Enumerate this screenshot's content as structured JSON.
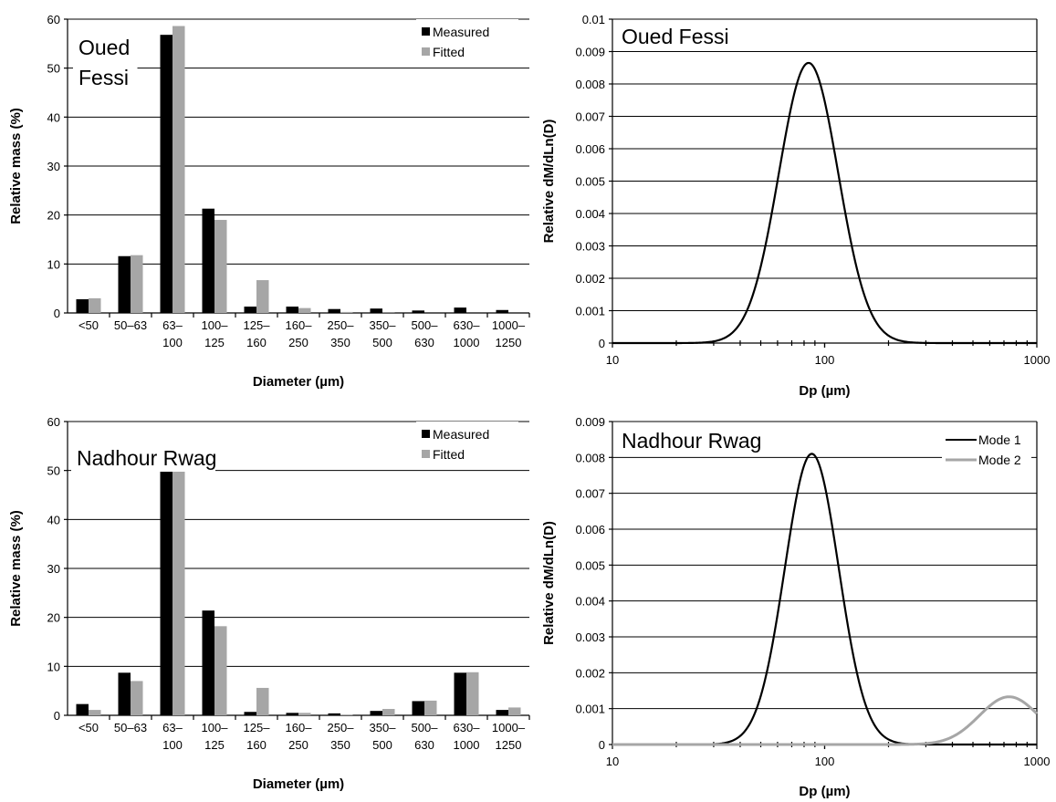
{
  "colors": {
    "measured": "#000000",
    "fitted": "#a6a6a6",
    "mode1": "#000000",
    "mode2": "#a6a6a6"
  },
  "chart_data": [
    {
      "id": "bar1",
      "type": "bar",
      "title_lines": [
        "Oued",
        "Fessi"
      ],
      "xlabel": "Diameter (µm)",
      "ylabel": "Relative mass (%)",
      "ylim": [
        0,
        60
      ],
      "yticks": [
        0,
        10,
        20,
        30,
        40,
        50,
        60
      ],
      "grid": true,
      "legend_position": "top-right",
      "categories": [
        [
          "<50"
        ],
        [
          "50–63"
        ],
        [
          "63–",
          "100"
        ],
        [
          "100–",
          "125"
        ],
        [
          "125–",
          "160"
        ],
        [
          "160–",
          "250"
        ],
        [
          "250–",
          "350"
        ],
        [
          "350–",
          "500"
        ],
        [
          "500–",
          "630"
        ],
        [
          "630–",
          "1000"
        ],
        [
          "1000–",
          "1250"
        ]
      ],
      "series": [
        {
          "name": "Measured",
          "color": "#000000",
          "values": [
            2.8,
            11.6,
            56.8,
            21.3,
            1.3,
            1.3,
            0.8,
            0.9,
            0.5,
            1.1,
            0.6
          ]
        },
        {
          "name": "Fitted",
          "color": "#a6a6a6",
          "values": [
            3.0,
            11.8,
            58.6,
            19.0,
            6.7,
            1.0,
            0.2,
            0.05,
            0.0,
            0.0,
            0.0
          ]
        }
      ]
    },
    {
      "id": "line1",
      "type": "line",
      "x_scale": "log",
      "title": "Oued Fessi",
      "xlabel": "Dp (µm)",
      "ylabel": "Relative dM/dLn(D)",
      "xlim": [
        10,
        1000
      ],
      "xticks": [
        "10",
        "100",
        "1000"
      ],
      "ylim": [
        0,
        0.01
      ],
      "yticks": [
        "0",
        "0.001",
        "0.002",
        "0.003",
        "0.004",
        "0.005",
        "0.006",
        "0.007",
        "0.008",
        "0.009",
        "0.01"
      ],
      "grid": true,
      "series": [
        {
          "name": "",
          "color": "#000000",
          "peak_dp": 84,
          "peak_value": 0.00865,
          "geometric_sd": 1.38
        }
      ]
    },
    {
      "id": "bar2",
      "type": "bar",
      "title_lines": [
        "Nadhour Rwag"
      ],
      "xlabel": "Diameter (µm)",
      "ylabel": "Relative mass (%)",
      "ylim": [
        0,
        60
      ],
      "yticks": [
        0,
        10,
        20,
        30,
        40,
        50,
        60
      ],
      "grid": true,
      "legend_position": "top-right",
      "categories": [
        [
          "<50"
        ],
        [
          "50–63"
        ],
        [
          "63–",
          "100"
        ],
        [
          "100–",
          "125"
        ],
        [
          "125–",
          "160"
        ],
        [
          "160–",
          "250"
        ],
        [
          "250–",
          "350"
        ],
        [
          "350–",
          "500"
        ],
        [
          "500–",
          "630"
        ],
        [
          "630–",
          "1000"
        ],
        [
          "1000–",
          "1250"
        ]
      ],
      "series": [
        {
          "name": "Measured",
          "color": "#000000",
          "values": [
            2.3,
            8.7,
            50.8,
            21.4,
            0.7,
            0.5,
            0.4,
            0.9,
            2.9,
            8.7,
            1.1
          ]
        },
        {
          "name": "Fitted",
          "color": "#a6a6a6",
          "values": [
            1.1,
            7.0,
            51.8,
            18.2,
            5.6,
            0.5,
            0.1,
            1.3,
            3.0,
            8.8,
            1.6
          ]
        }
      ]
    },
    {
      "id": "line2",
      "type": "line",
      "x_scale": "log",
      "title": "Nadhour Rwag",
      "xlabel": "Dp (µm)",
      "ylabel": "Relative dM/dLn(D)",
      "xlim": [
        10,
        1000
      ],
      "xticks": [
        "10",
        "100",
        "1000"
      ],
      "ylim": [
        0,
        0.009
      ],
      "yticks": [
        "0",
        "0.001",
        "0.002",
        "0.003",
        "0.004",
        "0.005",
        "0.006",
        "0.007",
        "0.008",
        "0.009"
      ],
      "grid": true,
      "legend_position": "top-right",
      "series": [
        {
          "name": "Mode 1",
          "color": "#000000",
          "peak_dp": 87,
          "peak_value": 0.0081,
          "geometric_sd": 1.34
        },
        {
          "name": "Mode 2",
          "color": "#a6a6a6",
          "peak_dp": 740,
          "peak_value": 0.00133,
          "geometric_sd": 1.38
        }
      ]
    }
  ]
}
